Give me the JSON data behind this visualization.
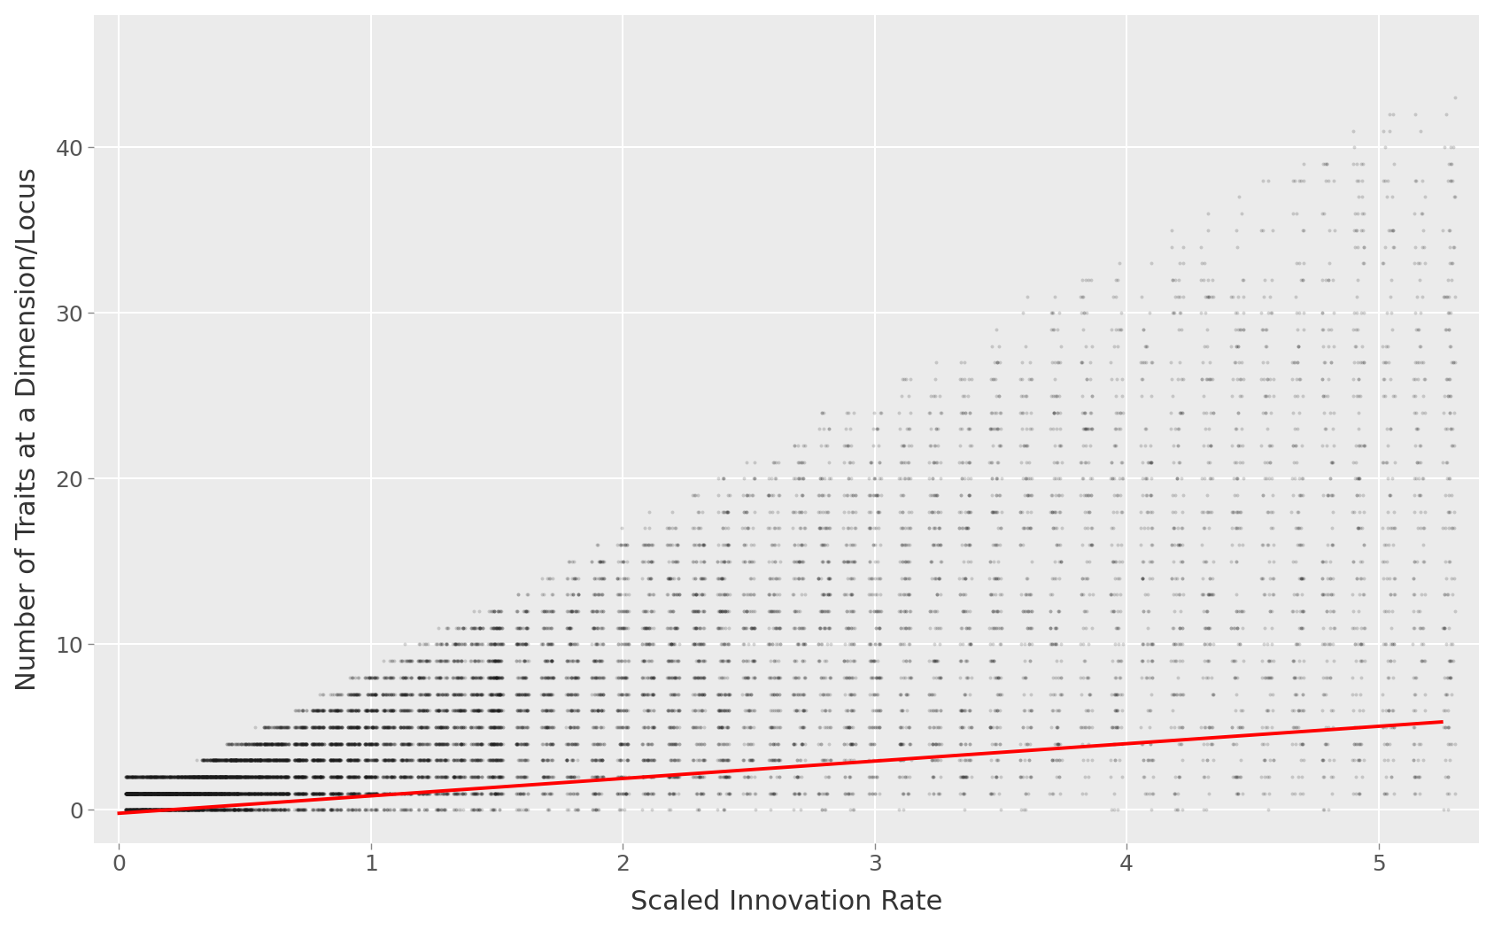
{
  "xlabel": "Scaled Innovation Rate",
  "ylabel": "Number of Traits at a Dimension/Locus",
  "xlim": [
    -0.1,
    5.4
  ],
  "ylim": [
    -2,
    48
  ],
  "yticks": [
    0,
    10,
    20,
    30,
    40
  ],
  "xticks": [
    0,
    1,
    2,
    3,
    4,
    5
  ],
  "bg_color": "#EBEBEB",
  "grid_color": "#FFFFFF",
  "dot_color": "#1a1a1a",
  "dot_alpha": 0.18,
  "dot_size": 8,
  "line_color": "#FF0000",
  "line_intercept": -0.2,
  "line_slope": 1.05,
  "xlabel_fontsize": 22,
  "ylabel_fontsize": 22,
  "tick_fontsize": 18,
  "seed": 42
}
